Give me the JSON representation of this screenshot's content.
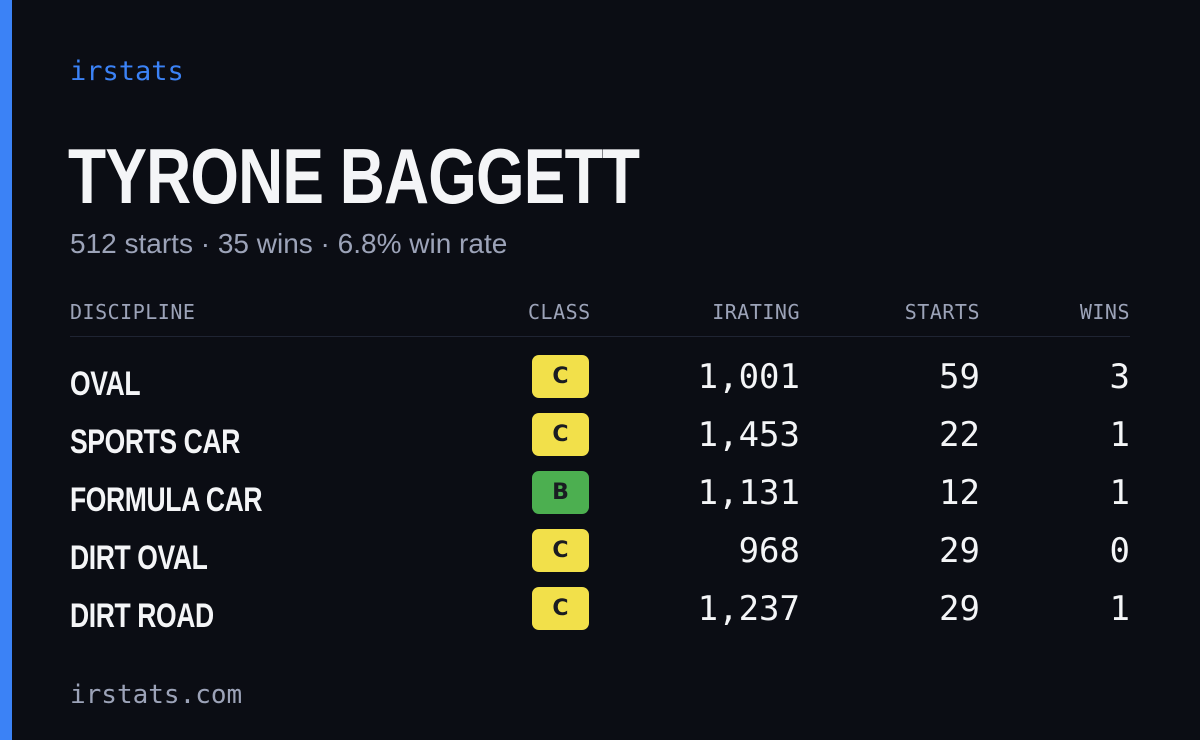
{
  "brand": "irstats",
  "driver": {
    "name": "TYRONE BAGGETT",
    "summary": "512 starts · 35 wins · 6.8% win rate"
  },
  "table": {
    "headers": {
      "discipline": "DISCIPLINE",
      "class": "CLASS",
      "irating": "IRATING",
      "starts": "STARTS",
      "wins": "WINS"
    },
    "rows": [
      {
        "discipline": "OVAL",
        "class": "C",
        "class_color": "#f2e04a",
        "irating": "1,001",
        "starts": "59",
        "wins": "3"
      },
      {
        "discipline": "SPORTS CAR",
        "class": "C",
        "class_color": "#f2e04a",
        "irating": "1,453",
        "starts": "22",
        "wins": "1"
      },
      {
        "discipline": "FORMULA CAR",
        "class": "B",
        "class_color": "#4caf50",
        "irating": "1,131",
        "starts": "12",
        "wins": "1"
      },
      {
        "discipline": "DIRT OVAL",
        "class": "C",
        "class_color": "#f2e04a",
        "irating": "968",
        "starts": "29",
        "wins": "0"
      },
      {
        "discipline": "DIRT ROAD",
        "class": "C",
        "class_color": "#f2e04a",
        "irating": "1,237",
        "starts": "29",
        "wins": "1"
      }
    ]
  },
  "footer": "irstats.com",
  "colors": {
    "accent": "#3b82f6",
    "background": "#0b0d14",
    "class_b": "#4caf50",
    "class_c": "#f2e04a"
  }
}
